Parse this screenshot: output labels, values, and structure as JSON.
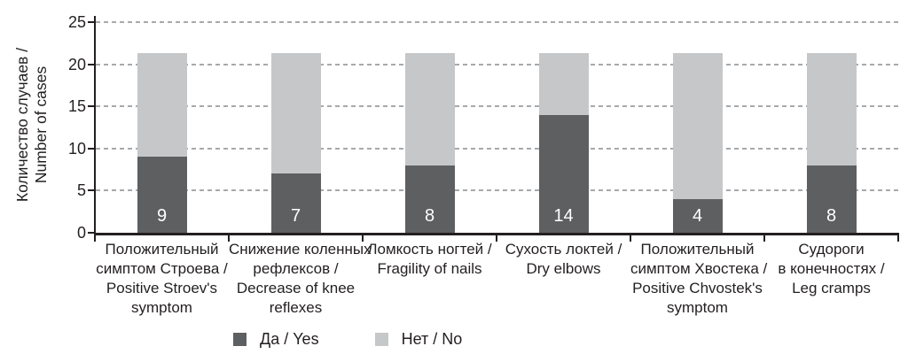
{
  "chart_data": {
    "type": "bar",
    "stacked": true,
    "title": "",
    "ylabel": "Количество случаев / Number of cases",
    "ylabel_lines": [
      "Количество случаев /",
      "Number of cases"
    ],
    "xlabel": "",
    "ylim": [
      0,
      25
    ],
    "yticks": [
      0,
      5,
      10,
      15,
      20,
      25
    ],
    "grid": "horizontal-dashed",
    "legend_position": "bottom",
    "stack_total": 21.3,
    "categories": [
      "Положительный симптом Строева / Positive Stroev's symptom",
      "Снижение коленных рефлексов / Decrease of knee reflexes",
      "Ломкость ногтей / Fragility of nails",
      "Сухость локтей / Dry elbows",
      "Положительный симптом Хвостека / Positive Chvostek's symptom",
      "Судороги в конечностях / Leg cramps"
    ],
    "category_lines": [
      [
        "Положительный",
        "симптом Строева /",
        "Positive Stroev's",
        "symptom"
      ],
      [
        "Снижение коленных",
        "рефлексов /",
        "Decrease of knee",
        "reflexes"
      ],
      [
        "Ломкость ногтей /",
        "Fragility of nails"
      ],
      [
        "Сухость локтей /",
        "Dry elbows"
      ],
      [
        "Положительный",
        "симптом Хвостека /",
        "Positive Chvostek's",
        "symptom"
      ],
      [
        "Судороги",
        "в конечностях /",
        "Leg cramps"
      ]
    ],
    "series": [
      {
        "name": "Да / Yes",
        "color": "#5d5f61",
        "values": [
          9,
          7,
          8,
          14,
          4,
          8
        ],
        "value_labels": [
          "9",
          "7",
          "8",
          "14",
          "4",
          "8"
        ]
      },
      {
        "name": "Нет / No",
        "color": "#c6c7c9",
        "values": [
          12.3,
          14.3,
          13.3,
          7.3,
          17.3,
          13.3
        ]
      }
    ],
    "colors": {
      "axis": "#231f20",
      "grid": "#a7a9ac",
      "text": "#231f20",
      "value_label_text": "#ffffff",
      "background": "#ffffff"
    }
  }
}
